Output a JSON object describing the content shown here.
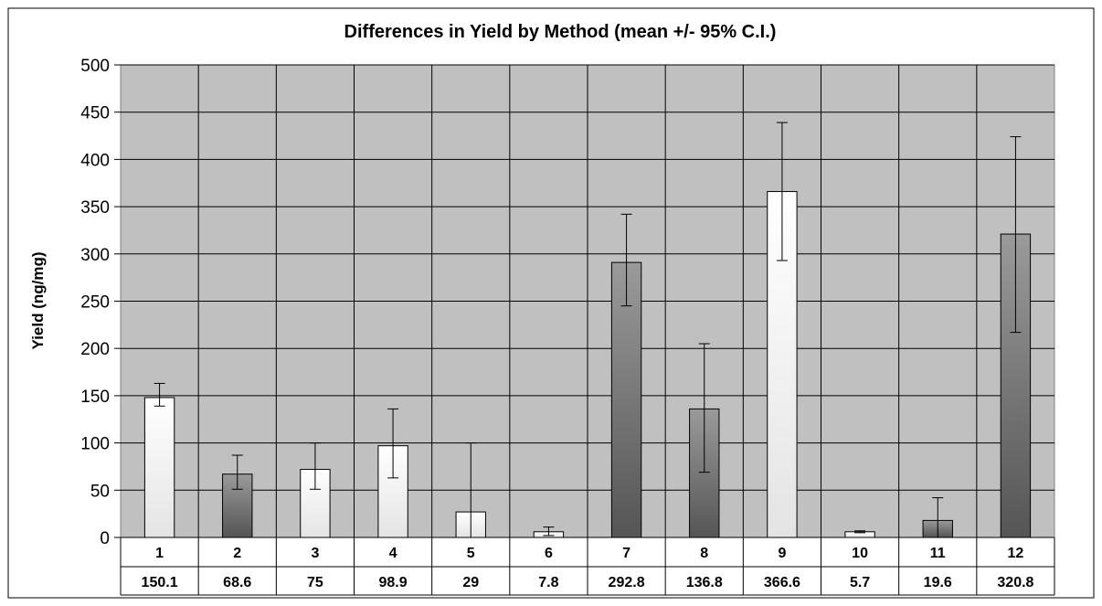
{
  "chart_data": {
    "type": "bar",
    "title": "Differences in Yield by Method (mean +/- 95% C.I.)",
    "xlabel": "",
    "ylabel": "Yield (ng/mg)",
    "ylim": [
      0,
      500
    ],
    "yticks": [
      0,
      50,
      100,
      150,
      200,
      250,
      300,
      350,
      400,
      450,
      500
    ],
    "grid": true,
    "legend": "none",
    "categories": [
      "1",
      "2",
      "3",
      "4",
      "5",
      "6",
      "7",
      "8",
      "9",
      "10",
      "11",
      "12"
    ],
    "values": [
      148,
      67,
      72,
      97,
      27,
      6,
      291,
      136,
      366,
      6,
      18,
      321
    ],
    "error_low": [
      139,
      51,
      51,
      63,
      0,
      2,
      245,
      69,
      293,
      5,
      0,
      217
    ],
    "error_high": [
      163,
      87,
      100,
      136,
      100,
      11,
      342,
      205,
      439,
      7,
      42,
      424
    ],
    "data_table": [
      "150.1",
      "68.6",
      "75",
      "98.9",
      "29",
      "7.8",
      "292.8",
      "136.8",
      "366.6",
      "5.7",
      "19.6",
      "320.8"
    ],
    "bar_fill": [
      "light",
      "dark",
      "light",
      "light",
      "light",
      "light",
      "dark",
      "dark",
      "light",
      "light",
      "dark",
      "dark"
    ],
    "colors": {
      "plot_background": "#c0c0c0",
      "gridline": "#000000",
      "light_bar_top": "#ffffff",
      "light_bar_bottom": "#e4e4e4",
      "dark_bar_top": "#9a9a9a",
      "dark_bar_bottom": "#555555"
    }
  }
}
